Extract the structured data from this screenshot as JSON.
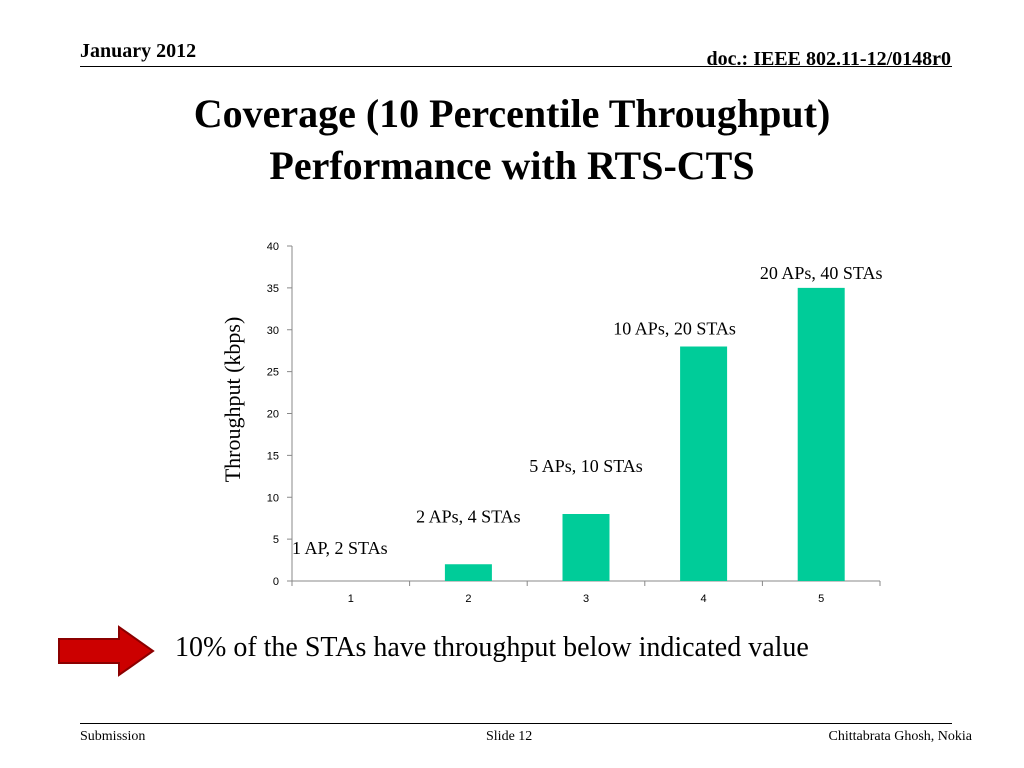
{
  "header": {
    "date": "January 2012",
    "doc": "doc.: IEEE 802.11-12/0148r0"
  },
  "title": {
    "line1": "Coverage (10 Percentile Throughput)",
    "line2": "Performance with RTS-CTS"
  },
  "chart_data": {
    "type": "bar",
    "categories": [
      "1",
      "2",
      "3",
      "4",
      "5"
    ],
    "values": [
      0,
      2,
      8,
      28,
      35
    ],
    "data_labels": [
      "1 AP, 2 STAs",
      "2 APs, 4 STAs",
      "5 APs, 10 STAs",
      "10 APs, 20 STAs",
      "20 APs, 40 STAs"
    ],
    "ylabel": "Throughput (kbps)",
    "xlabel": "",
    "ylim": [
      0,
      40
    ],
    "yticks": [
      0,
      5,
      10,
      15,
      20,
      25,
      30,
      35,
      40
    ],
    "bar_color": "#00CC99",
    "grid": false,
    "legend": "none"
  },
  "callout": {
    "text": "10% of the STAs have throughput below indicated value",
    "arrow_color": "#CC0000"
  },
  "footer": {
    "left": "Submission",
    "center": "Slide 12",
    "right": "Chittabrata Ghosh, Nokia"
  }
}
